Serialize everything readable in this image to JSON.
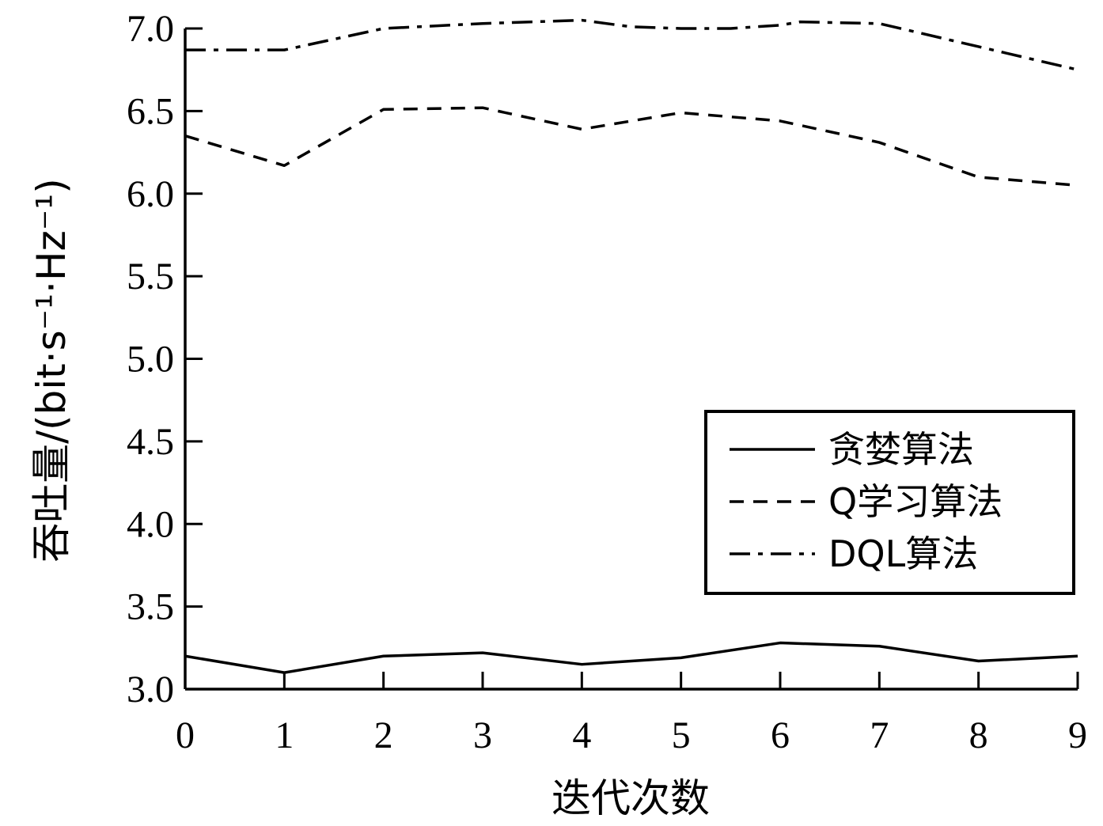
{
  "chart_data": {
    "type": "line",
    "xlabel": "迭代次数",
    "ylabel": "吞吐量/(bit·s⁻¹·Hz⁻¹)",
    "x": [
      0,
      1,
      2,
      3,
      4,
      5,
      6,
      7,
      8,
      9
    ],
    "xlim": [
      0,
      9
    ],
    "ylim": [
      3.0,
      7.0
    ],
    "xticks": [
      "0",
      "1",
      "2",
      "3",
      "4",
      "5",
      "6",
      "7",
      "8",
      "9"
    ],
    "yticks": [
      "3.0",
      "3.5",
      "4.0",
      "4.5",
      "5.0",
      "5.5",
      "6.0",
      "6.5",
      "7.0"
    ],
    "grid": false,
    "legend_position": "lower-right",
    "series": [
      {
        "name": "贪婪算法",
        "style": "solid",
        "x": [
          0,
          1,
          2,
          3,
          4,
          5,
          6,
          7,
          8,
          9
        ],
        "values": [
          3.2,
          3.1,
          3.2,
          3.22,
          3.15,
          3.19,
          3.28,
          3.26,
          3.17,
          3.2
        ]
      },
      {
        "name": "Q学习算法",
        "style": "dashed",
        "x": [
          0,
          1,
          2,
          3,
          4,
          5,
          6,
          7,
          8,
          9
        ],
        "values": [
          6.35,
          6.17,
          6.51,
          6.52,
          6.39,
          6.49,
          6.44,
          6.31,
          6.1,
          6.05
        ]
      },
      {
        "name": "DQL算法",
        "style": "dashdot",
        "x": [
          0,
          1,
          2,
          3,
          4,
          4.5,
          5,
          5.5,
          6,
          6.2,
          7,
          8,
          9
        ],
        "values": [
          6.87,
          6.87,
          7.0,
          7.03,
          7.05,
          7.01,
          7.0,
          7.0,
          7.02,
          7.04,
          7.03,
          6.89,
          6.75
        ]
      }
    ],
    "colors": {
      "line": "#000000",
      "background": "#ffffff"
    }
  }
}
